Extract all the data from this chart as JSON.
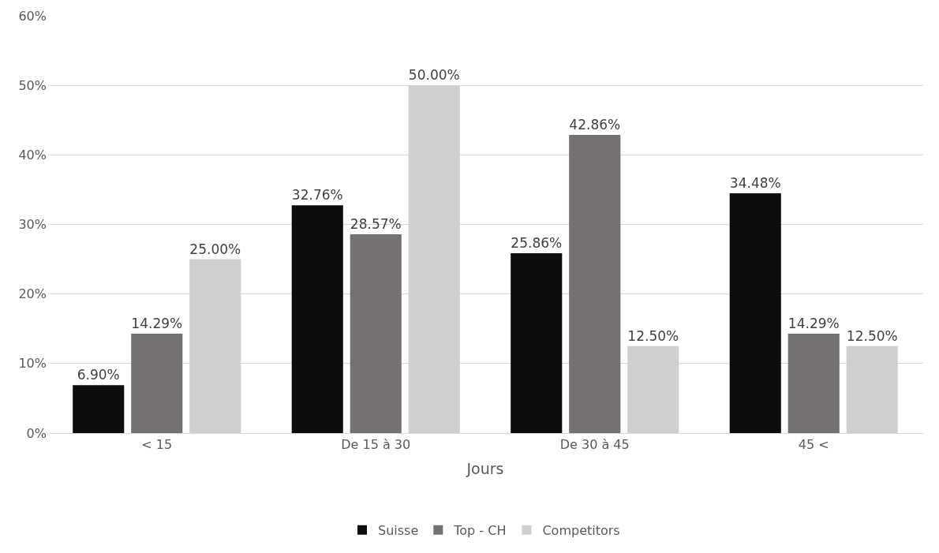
{
  "chart_data": {
    "type": "bar",
    "xlabel": "Jours",
    "categories": [
      "< 15",
      "De 15 à 30",
      "De 30 à 45",
      "45 <"
    ],
    "series": [
      {
        "name": "Suisse",
        "color": "#0d0d0d",
        "values": [
          6.9,
          32.76,
          25.86,
          34.48
        ],
        "value_labels": [
          "6.90%",
          "32.76%",
          "25.86%",
          "34.48%"
        ]
      },
      {
        "name": "Top - CH",
        "color": "#767171",
        "values": [
          14.29,
          28.57,
          42.86,
          14.29
        ],
        "value_labels": [
          "14.29%",
          "28.57%",
          "42.86%",
          "14.29%"
        ]
      },
      {
        "name": "Competitors",
        "color": "#d0cece",
        "values": [
          25,
          50,
          12.5,
          12.5
        ],
        "value_labels": [
          "25.00%",
          "50.00%",
          "12.50%",
          "12.50%"
        ]
      }
    ],
    "ylim": [
      0,
      60
    ],
    "yticks": [
      {
        "value": 0,
        "label": "0%"
      },
      {
        "value": 10,
        "label": "10%"
      },
      {
        "value": 20,
        "label": "20%"
      },
      {
        "value": 30,
        "label": "30%"
      },
      {
        "value": 40,
        "label": "40%"
      },
      {
        "value": 50,
        "label": "50%"
      },
      {
        "value": 60,
        "label": "60%"
      }
    ],
    "grid": "y",
    "legend": "bottom"
  }
}
